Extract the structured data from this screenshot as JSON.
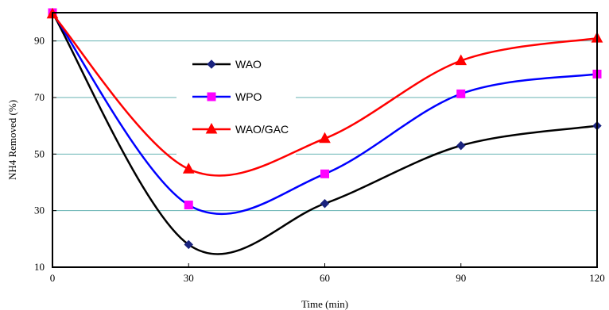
{
  "chart_data": {
    "type": "line",
    "title": "",
    "xlabel": "Time (min)",
    "ylabel": "NH4 Removed (%)",
    "xlim": [
      0,
      120
    ],
    "ylim": [
      10,
      100
    ],
    "xticks": [
      "0",
      "30",
      "60",
      "90",
      "120"
    ],
    "yticks": [
      "10",
      "30",
      "50",
      "70",
      "90"
    ],
    "grid": "horizontal",
    "legend_position": "center-left",
    "x": [
      0,
      30,
      60,
      90,
      120
    ],
    "series": [
      {
        "name": "WAO",
        "values": [
          100,
          18,
          32.5,
          53,
          60
        ],
        "color": "#000000",
        "marker": "diamond",
        "marker_color": "#1a237e"
      },
      {
        "name": "WPO",
        "values": [
          100,
          32,
          43,
          71.3,
          78.3
        ],
        "color": "#0000ff",
        "marker": "square",
        "marker_color": "#ff00ff"
      },
      {
        "name": "WAO/GAC",
        "values": [
          99.5,
          44.7,
          55.5,
          83,
          91
        ],
        "color": "#ff0000",
        "marker": "triangle",
        "marker_color": "#ff0000"
      }
    ],
    "grid_color": "#66b2b2"
  }
}
